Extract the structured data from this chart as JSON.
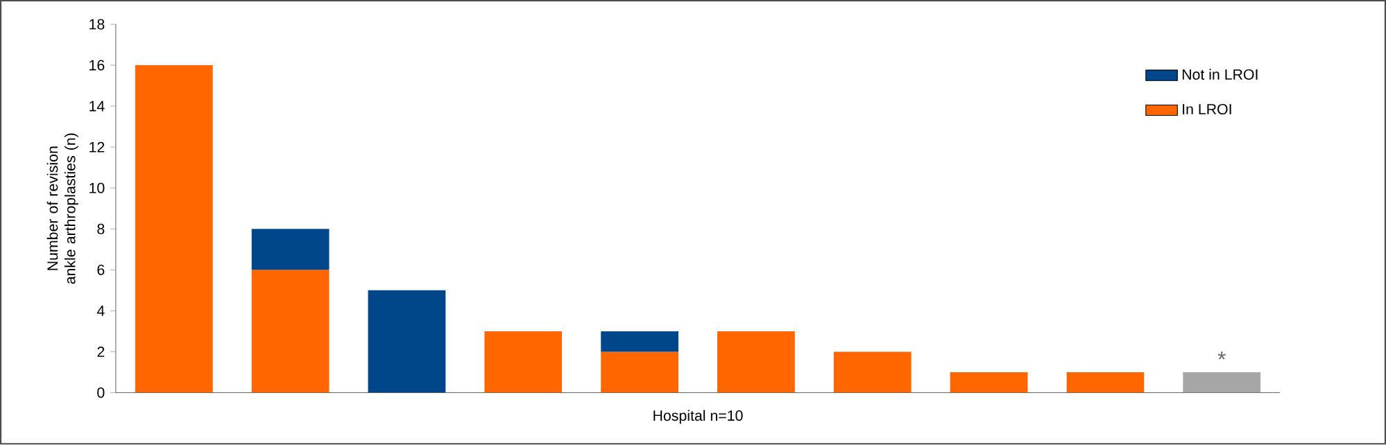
{
  "chart_data": {
    "type": "bar",
    "stacked": true,
    "xlabel": "Hospital n=10",
    "ylabel": "Number of revision ankle arthroplasties (n)",
    "categories": [
      null,
      null,
      null,
      null,
      null,
      null,
      null,
      null,
      null,
      null
    ],
    "series": [
      {
        "name": "In LROI",
        "color": "#ff6600",
        "colors": [
          "#ff6600",
          "#ff6600",
          "#ff6600",
          "#ff6600",
          "#ff6600",
          "#ff6600",
          "#ff6600",
          "#ff6600",
          "#ff6600",
          "#a6a6a6"
        ],
        "values": [
          16,
          6,
          null,
          3,
          2,
          3,
          2,
          1,
          1,
          1
        ]
      },
      {
        "name": "Not in LROI",
        "color": "#00468b",
        "values": [
          null,
          2,
          5,
          null,
          1,
          null,
          null,
          null,
          null,
          null
        ]
      }
    ],
    "ylim": [
      0,
      18
    ],
    "yticks": [
      0,
      2,
      4,
      6,
      8,
      10,
      12,
      14,
      16,
      18
    ],
    "legend": "top right",
    "grid": false,
    "annotations": [
      "*"
    ]
  }
}
